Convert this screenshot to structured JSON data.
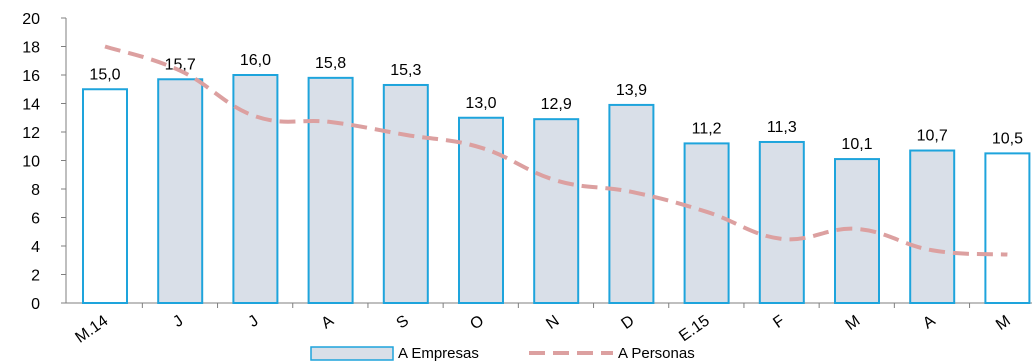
{
  "chart_data": {
    "type": "bar",
    "categories": [
      "M.14",
      "J",
      "J",
      "A",
      "S",
      "O",
      "N",
      "D",
      "E.15",
      "F",
      "M",
      "A",
      "M"
    ],
    "series": [
      {
        "name": "A Empresas",
        "kind": "bar",
        "values": [
          15.0,
          15.7,
          16.0,
          15.8,
          15.3,
          13.0,
          12.9,
          13.9,
          11.2,
          11.3,
          10.1,
          10.7,
          10.5
        ],
        "value_labels": [
          "15,0",
          "15,7",
          "16,0",
          "15,8",
          "15,3",
          "13,0",
          "12,9",
          "13,9",
          "11,2",
          "11,3",
          "10,1",
          "10,7",
          "10,5"
        ],
        "highlighted": [
          true,
          false,
          false,
          false,
          false,
          false,
          false,
          false,
          false,
          false,
          false,
          false,
          true
        ]
      },
      {
        "name": "A Personas",
        "kind": "line",
        "style": "dashed",
        "values": [
          18.0,
          16.3,
          13.1,
          12.7,
          11.8,
          10.9,
          8.6,
          7.8,
          6.4,
          4.5,
          5.2,
          3.7,
          3.4
        ]
      }
    ],
    "y_ticks": [
      "0",
      "2",
      "4",
      "6",
      "8",
      "10",
      "12",
      "14",
      "16",
      "18",
      "20"
    ],
    "ylim": [
      0,
      20
    ],
    "grid": false,
    "legend_position": "bottom",
    "colors": {
      "bar_fill": "#d9dfe8",
      "bar_highlight_fill": "#ffffff",
      "bar_stroke": "#1ea4dc",
      "line": "#dca0a0",
      "axis": "#7f7f7f"
    }
  }
}
